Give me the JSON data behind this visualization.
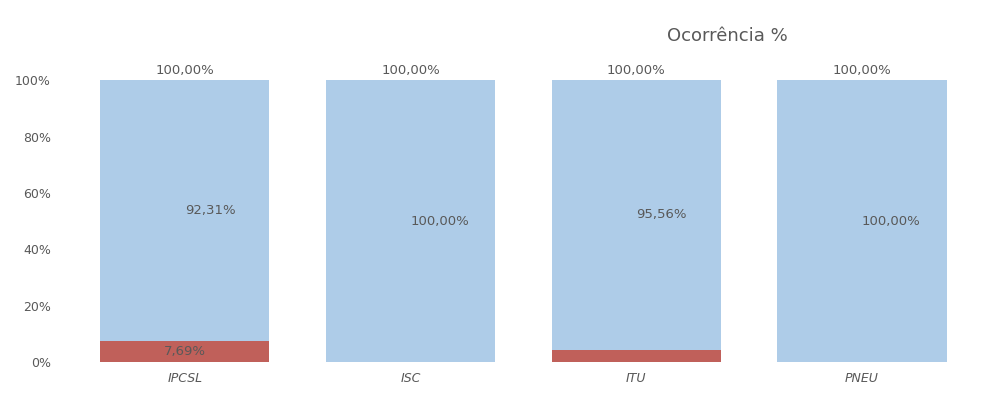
{
  "categories": [
    "IPCSL",
    "ISC",
    "ITU",
    "PNEU"
  ],
  "sensitive_values": [
    92.31,
    100.0,
    95.56,
    100.0
  ],
  "resistant_values": [
    7.69,
    0.0,
    4.44,
    0.0
  ],
  "sensitive_labels": [
    "92,31%",
    "100,00%",
    "95,56%",
    "100,00%"
  ],
  "resistant_labels": [
    "7,69%",
    "",
    "",
    ""
  ],
  "top_labels": [
    "100,00%",
    "100,00%",
    "100,00%",
    "100,00%"
  ],
  "sensitive_color": "#aecce8",
  "resistant_color": "#c0605a",
  "title": "Ocorrência %",
  "title_fontsize": 13,
  "label_fontsize": 9.5,
  "tick_fontsize": 9,
  "ytick_labels": [
    "0%",
    "20%",
    "40%",
    "60%",
    "80%",
    "100%"
  ],
  "ytick_values": [
    0,
    20,
    40,
    60,
    80,
    100
  ],
  "bar_width": 0.75,
  "background_color": "#ffffff",
  "text_color": "#595959"
}
